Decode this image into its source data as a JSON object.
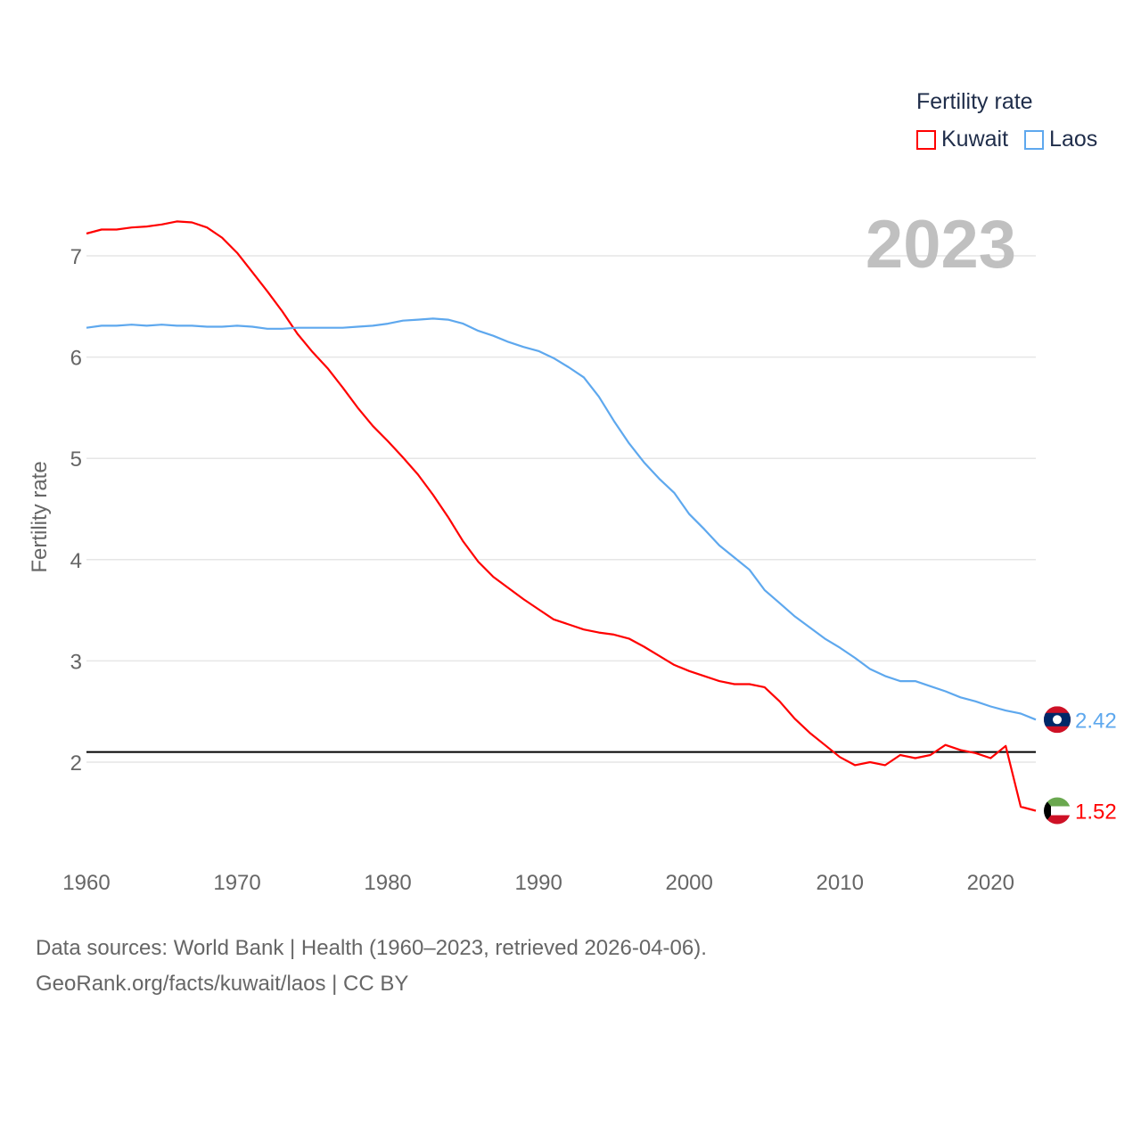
{
  "chart_data": {
    "type": "line",
    "ylabel": "Fertility rate",
    "xlabel": "",
    "year_label": "2023",
    "legend_title": "Fertility rate",
    "legend_placement": "top-right",
    "xlim": [
      1960,
      2023
    ],
    "ylim": [
      1.1,
      7.5
    ],
    "xticks": [
      1960,
      1970,
      1980,
      1990,
      2000,
      2010,
      2020
    ],
    "yticks": [
      2,
      3,
      4,
      5,
      6,
      7
    ],
    "grid": true,
    "reference_line": 2.1,
    "x": [
      1960,
      1961,
      1962,
      1963,
      1964,
      1965,
      1966,
      1967,
      1968,
      1969,
      1970,
      1971,
      1972,
      1973,
      1974,
      1975,
      1976,
      1977,
      1978,
      1979,
      1980,
      1981,
      1982,
      1983,
      1984,
      1985,
      1986,
      1987,
      1988,
      1989,
      1990,
      1991,
      1992,
      1993,
      1994,
      1995,
      1996,
      1997,
      1998,
      1999,
      2000,
      2001,
      2002,
      2003,
      2004,
      2005,
      2006,
      2007,
      2008,
      2009,
      2010,
      2011,
      2012,
      2013,
      2014,
      2015,
      2016,
      2017,
      2018,
      2019,
      2020,
      2021,
      2022,
      2023
    ],
    "series": [
      {
        "name": "Kuwait",
        "color": "#ff0000",
        "end_label": "1.52",
        "values": [
          7.22,
          7.26,
          7.26,
          7.28,
          7.29,
          7.31,
          7.34,
          7.33,
          7.28,
          7.18,
          7.03,
          6.84,
          6.65,
          6.45,
          6.23,
          6.05,
          5.89,
          5.7,
          5.5,
          5.32,
          5.17,
          5.01,
          4.84,
          4.64,
          4.42,
          4.18,
          3.98,
          3.83,
          3.72,
          3.61,
          3.51,
          3.41,
          3.36,
          3.31,
          3.28,
          3.26,
          3.22,
          3.14,
          3.05,
          2.96,
          2.9,
          2.85,
          2.8,
          2.77,
          2.77,
          2.74,
          2.6,
          2.43,
          2.29,
          2.17,
          2.05,
          1.97,
          2.0,
          1.97,
          2.07,
          2.04,
          2.07,
          2.17,
          2.12,
          2.09,
          2.04,
          2.16,
          1.56,
          1.52
        ]
      },
      {
        "name": "Laos",
        "color": "#5ea8ee",
        "end_label": "2.42",
        "values": [
          6.29,
          6.31,
          6.31,
          6.32,
          6.31,
          6.32,
          6.31,
          6.31,
          6.3,
          6.3,
          6.31,
          6.3,
          6.28,
          6.28,
          6.29,
          6.29,
          6.29,
          6.29,
          6.3,
          6.31,
          6.33,
          6.36,
          6.37,
          6.38,
          6.37,
          6.33,
          6.26,
          6.21,
          6.15,
          6.1,
          6.06,
          5.99,
          5.9,
          5.8,
          5.61,
          5.37,
          5.15,
          4.96,
          4.8,
          4.66,
          4.45,
          4.3,
          4.14,
          4.02,
          3.9,
          3.7,
          3.57,
          3.44,
          3.33,
          3.22,
          3.13,
          3.03,
          2.92,
          2.85,
          2.8,
          2.8,
          2.75,
          2.7,
          2.64,
          2.6,
          2.55,
          2.51,
          2.48,
          2.42
        ]
      }
    ]
  },
  "footer": {
    "line1": "Data sources: World Bank | Health (1960–2023, retrieved 2026-04-06).",
    "line2": "GeoRank.org/facts/kuwait/laos | CC BY"
  }
}
